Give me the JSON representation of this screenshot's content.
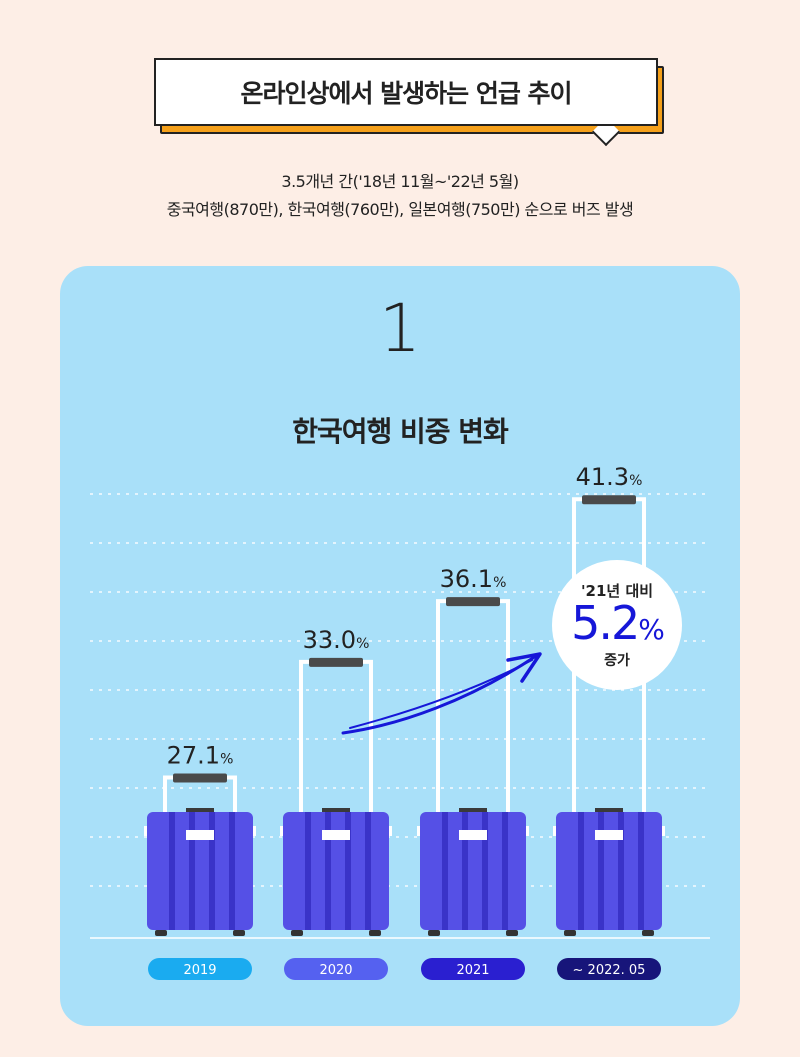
{
  "header": {
    "title": "온라인상에서 발생하는 언급 추이",
    "subtitle_line1": "3.5개년 간('18년 11월~'22년 5월)",
    "subtitle_line2": "중국여행(870만), 한국여행(760만), 일본여행(750만) 순으로 버즈 발생"
  },
  "section": {
    "number": "1",
    "title": "한국여행 비중 변화"
  },
  "callout": {
    "top": "'21년 대비",
    "value": "5.2",
    "unit": "%",
    "bottom": "증가"
  },
  "colors": {
    "background": "#fdeee6",
    "panel": "#a9e0f9",
    "accent_orange": "#f5a01a",
    "suitcase": "#5550e6",
    "stripe": "#3a33c8",
    "arrow": "#1617d8",
    "pill_2019": "#1aabf0",
    "pill_2020": "#5561f0",
    "pill_2021": "#2a1fd0",
    "pill_2022": "#17157a"
  },
  "chart_data": {
    "type": "bar",
    "title": "한국여행 비중 변화",
    "categories": [
      "2019",
      "2020",
      "2021",
      "~ 2022. 05"
    ],
    "values": [
      27.1,
      33.0,
      36.1,
      41.3
    ],
    "unit": "%",
    "value_labels": [
      "27.1",
      "33.0",
      "36.1",
      "41.3"
    ],
    "ylim": [
      0,
      45
    ],
    "grid": true
  }
}
